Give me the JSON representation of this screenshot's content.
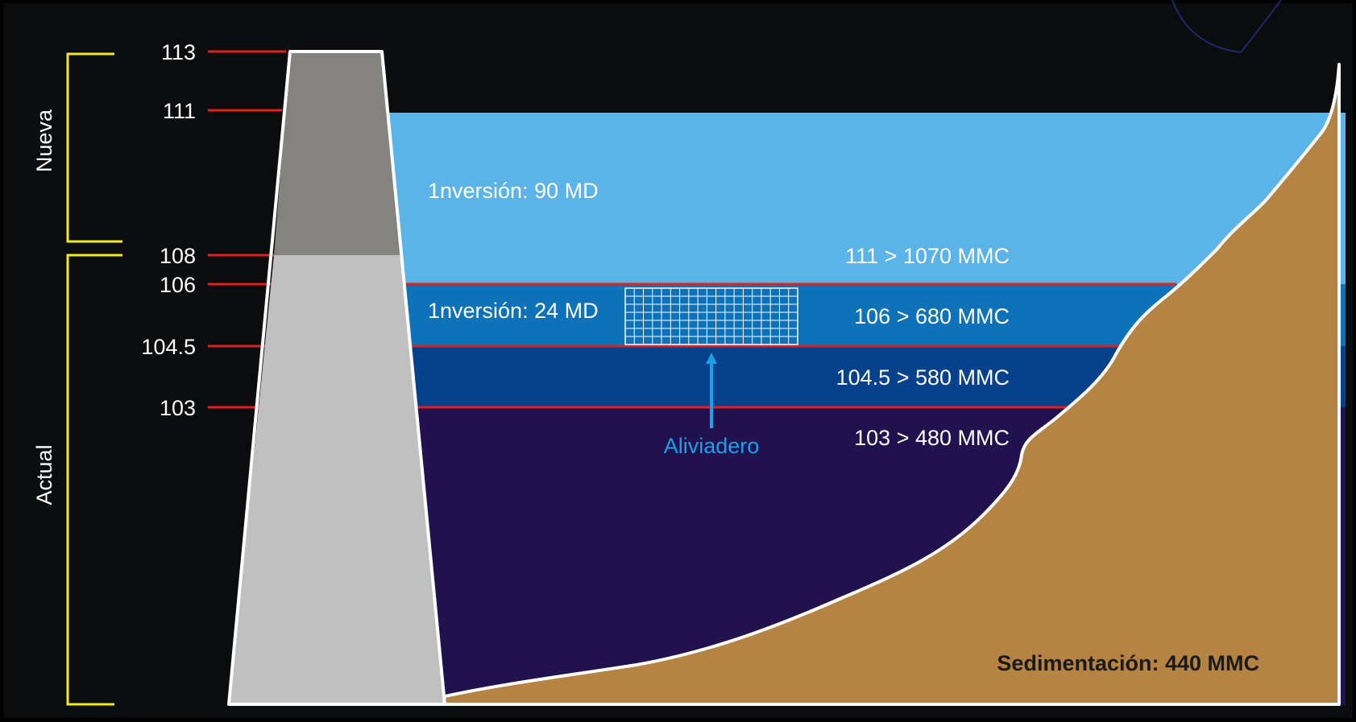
{
  "brackets": {
    "top_label": "Nueva",
    "bottom_label": "Actual"
  },
  "elevations": [
    "113",
    "111",
    "108",
    "106",
    "104.5",
    "103"
  ],
  "investments": {
    "upper": "1nversión: 90 MD",
    "lower": "1nversión: 24 MD"
  },
  "capacities": {
    "c111": "111 > 1070 MMC",
    "c106": "106 > 680 MMC",
    "c1045": "104.5 > 580 MMC",
    "c103": "103 > 480 MMC"
  },
  "spillway_label": "Aliviadero",
  "sediment_label": "Sedimentación: 440 MMC",
  "colors": {
    "background": "#000000",
    "water_top": "#5ab4e8",
    "water_mid": "#0d72b8",
    "water_deep": "#06428c",
    "water_bottom": "#21124f",
    "sediment": "#b58342",
    "dam_upper": "#858380",
    "dam_lower": "#c0c0c0",
    "level_line": "#e02020",
    "bracket": "#f2ea1a",
    "spillway": "#1aa0e8"
  }
}
